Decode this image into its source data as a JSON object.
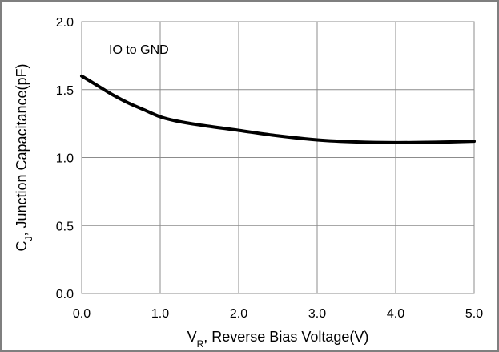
{
  "chart_data": {
    "type": "line",
    "title": "",
    "xlabel_main": "V",
    "xlabel_sub": "R",
    "xlabel_rest": ", Reverse Bias Voltage(V)",
    "ylabel_main": "C",
    "ylabel_sub": "J",
    "ylabel_rest": ", Junction Capacitance(pF)",
    "annotation": "IO to GND",
    "xlim": [
      0,
      5
    ],
    "ylim": [
      0,
      2
    ],
    "x_ticks": [
      "0.0",
      "1.0",
      "2.0",
      "3.0",
      "4.0",
      "5.0"
    ],
    "y_ticks": [
      "0.0",
      "0.5",
      "1.0",
      "1.5",
      "2.0"
    ],
    "grid": true,
    "line_color": "#000000",
    "grid_color": "#8c8c8c",
    "series": [
      {
        "x": [
          0.0,
          0.2,
          0.4,
          0.6,
          0.8,
          1.0,
          1.2,
          1.5,
          2.0,
          2.5,
          3.0,
          3.5,
          4.0,
          4.5,
          5.0
        ],
        "y": [
          1.6,
          1.53,
          1.46,
          1.4,
          1.35,
          1.3,
          1.27,
          1.24,
          1.2,
          1.16,
          1.13,
          1.115,
          1.11,
          1.113,
          1.12
        ]
      }
    ]
  }
}
